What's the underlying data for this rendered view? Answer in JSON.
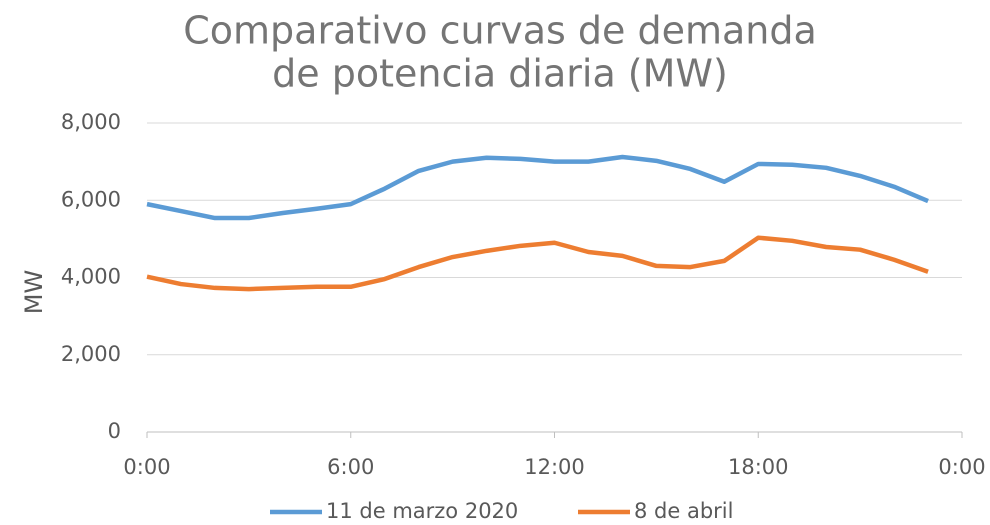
{
  "chart_data": {
    "type": "line",
    "title": [
      "Comparativo curvas de demanda",
      "de potencia diaria (MW)"
    ],
    "y_label": "MW",
    "x": [
      0,
      1,
      2,
      3,
      4,
      5,
      6,
      7,
      8,
      9,
      10,
      11,
      12,
      13,
      14,
      15,
      16,
      17,
      18,
      19,
      20,
      21,
      22,
      23
    ],
    "xlim": [
      0,
      24
    ],
    "xticks": [
      {
        "value": 0,
        "label": "0:00"
      },
      {
        "value": 6,
        "label": "6:00"
      },
      {
        "value": 12,
        "label": "12:00"
      },
      {
        "value": 18,
        "label": "18:00"
      },
      {
        "value": 24,
        "label": "0:00"
      }
    ],
    "ylim": [
      0,
      8000
    ],
    "yticks": [
      0,
      {
        "value": 2000,
        "label": "2,000"
      },
      {
        "value": 4000,
        "label": "4,000"
      },
      {
        "value": 6000,
        "label": "6,000"
      },
      {
        "value": 8000,
        "label": "8,000"
      }
    ],
    "grid": true,
    "legend": "bottom",
    "series": [
      {
        "name": "11 de marzo 2020",
        "color": "#5b9bd5",
        "values": [
          5900,
          5720,
          5540,
          5540,
          5670,
          5780,
          5900,
          6300,
          6760,
          7000,
          7100,
          7070,
          7000,
          7000,
          7120,
          7020,
          6810,
          6480,
          6940,
          6920,
          6840,
          6630,
          6350,
          5980
        ]
      },
      {
        "name": "8 de abril",
        "color": "#ed7d31",
        "values": [
          4020,
          3830,
          3730,
          3700,
          3730,
          3760,
          3760,
          3960,
          4270,
          4530,
          4690,
          4820,
          4900,
          4660,
          4560,
          4300,
          4270,
          4430,
          5030,
          4950,
          4790,
          4720,
          4460,
          4150
        ]
      }
    ]
  }
}
